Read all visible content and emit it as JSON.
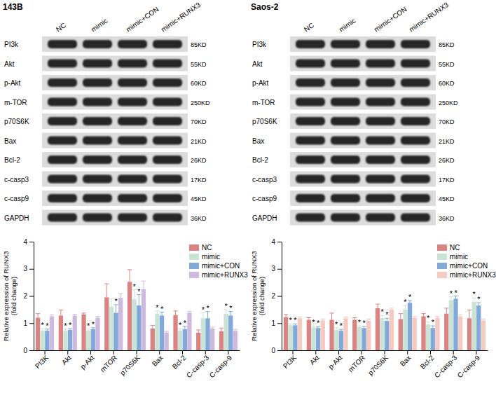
{
  "blots": [
    {
      "title": "143B",
      "lanes": [
        "NC",
        "mimic",
        "mimic+CON",
        "mimic+RUNX3"
      ],
      "proteins": [
        "PI3k",
        "Akt",
        "p-Akt",
        "m-TOR",
        "p70S6K",
        "Bax",
        "Bcl-2",
        "c-casp3",
        "c-casp9",
        "GAPDH"
      ],
      "sizes": [
        "85KD",
        "55KD",
        "60KD",
        "250KD",
        "70KD",
        "21KD",
        "26KD",
        "17KD",
        "45KD",
        "36KD"
      ]
    },
    {
      "title": "Saos-2",
      "lanes": [
        "NC",
        "mimic",
        "mimic+CON",
        "mimic+RUNX3"
      ],
      "proteins": [
        "PI3k",
        "Akt",
        "p-Akt",
        "m-TOR",
        "p70S6K",
        "Bax",
        "Bcl-2",
        "c-casp3",
        "c-casp9",
        "GAPDH"
      ],
      "sizes": [
        "85KD",
        "55KD",
        "60KD",
        "250KD",
        "70KD",
        "21KD",
        "26KD",
        "17KD",
        "45KD",
        "36KD"
      ]
    }
  ],
  "chart_data": [
    {
      "type": "bar",
      "ylabel": [
        "Relative expression of RUNX3",
        "(fold change)"
      ],
      "categories": [
        "PI3K",
        "Akt",
        "p-Akt",
        "mTOR",
        "p70S6K",
        "Bax",
        "Bcl-2",
        "C-casp-3",
        "C-casp-9"
      ],
      "ylim": [
        0,
        4
      ],
      "yticks": [
        0,
        1,
        2,
        3,
        4
      ],
      "legend": "upper right",
      "series": [
        {
          "name": "NC",
          "color": "#d98383",
          "values": [
            1.2,
            1.28,
            1.32,
            1.95,
            2.52,
            0.8,
            1.3,
            0.65,
            0.7
          ],
          "errors": [
            0.15,
            0.2,
            0.05,
            0.5,
            0.45,
            0.12,
            0.15,
            0.1,
            0.12
          ],
          "annotations": [
            null,
            null,
            null,
            null,
            null,
            null,
            null,
            null,
            null
          ]
        },
        {
          "name": "mimic",
          "color": "#c9e4d6",
          "values": [
            0.72,
            0.72,
            0.72,
            1.6,
            1.88,
            1.35,
            0.72,
            1.18,
            1.35
          ],
          "errors": [
            0.08,
            0.06,
            0.05,
            0.3,
            0.35,
            0.1,
            0.08,
            0.2,
            0.15
          ],
          "annotations": [
            "*",
            "*",
            "*",
            null,
            "*",
            "*",
            "*",
            "*",
            "*"
          ]
        },
        {
          "name": "mimic+CON",
          "color": "#82a9d8",
          "values": [
            0.72,
            0.75,
            0.78,
            1.38,
            1.65,
            1.28,
            0.78,
            1.18,
            1.28
          ],
          "errors": [
            0.06,
            0.05,
            0.05,
            0.3,
            0.4,
            0.12,
            0.1,
            0.25,
            0.15
          ],
          "annotations": [
            "*",
            "*",
            "*",
            "*",
            "*",
            "*",
            "*",
            "*",
            "*"
          ]
        },
        {
          "name": "mimic+RUNX3",
          "color": "#cfbadf",
          "values": [
            1.25,
            1.28,
            1.2,
            1.93,
            2.25,
            0.65,
            1.38,
            0.8,
            0.72
          ],
          "errors": [
            0.05,
            0.05,
            0.05,
            0.15,
            0.3,
            0.05,
            0.05,
            0.05,
            0.05
          ],
          "annotations": [
            null,
            null,
            null,
            null,
            null,
            null,
            null,
            null,
            null
          ]
        }
      ]
    },
    {
      "type": "bar",
      "ylabel": [
        "Relative expression of RUNX3",
        "(fold change)"
      ],
      "categories": [
        "PI3K",
        "Akt",
        "p-Akt",
        "mTOR",
        "p70S6K",
        "Bax",
        "Bcl-2",
        "C-casp-3",
        "C-casp-9"
      ],
      "ylim": [
        0,
        4
      ],
      "yticks": [
        0,
        1,
        2,
        3,
        4
      ],
      "legend": "upper right",
      "series": [
        {
          "name": "NC",
          "color": "#d98383",
          "values": [
            1.22,
            1.12,
            1.12,
            1.12,
            1.55,
            1.15,
            1.25,
            1.35,
            1.18
          ],
          "errors": [
            0.1,
            0.08,
            0.25,
            0.08,
            0.15,
            0.2,
            0.1,
            0.2,
            0.3
          ],
          "annotations": [
            null,
            null,
            null,
            null,
            null,
            null,
            null,
            null,
            null
          ]
        },
        {
          "name": "mimic",
          "color": "#c9e4d6",
          "values": [
            0.92,
            0.85,
            0.75,
            0.85,
            1.18,
            1.5,
            0.95,
            1.85,
            1.78
          ],
          "errors": [
            0.05,
            0.05,
            0.08,
            0.05,
            0.1,
            0.15,
            0.1,
            0.12,
            0.15
          ],
          "annotations": [
            "*",
            "*",
            "*",
            "*",
            "*",
            "*",
            "*",
            "*",
            "*"
          ]
        },
        {
          "name": "mimic+CON",
          "color": "#82a9d8",
          "values": [
            0.92,
            0.82,
            0.72,
            0.82,
            1.08,
            1.75,
            0.82,
            1.9,
            1.65
          ],
          "errors": [
            0.05,
            0.05,
            0.05,
            0.05,
            0.1,
            0.08,
            0.08,
            0.1,
            0.1
          ],
          "annotations": [
            "*",
            "*",
            "*",
            "*",
            "*",
            "*",
            "*",
            "*",
            "*"
          ]
        },
        {
          "name": "mimic+RUNX3",
          "color": "#f5cac1",
          "values": [
            1.18,
            1.1,
            1.18,
            1.1,
            1.5,
            1.2,
            1.2,
            1.25,
            1.1
          ],
          "errors": [
            0.05,
            0.05,
            0.05,
            0.05,
            0.05,
            0.05,
            0.05,
            0.05,
            0.05
          ],
          "annotations": [
            null,
            null,
            null,
            null,
            null,
            null,
            null,
            null,
            null
          ]
        }
      ]
    }
  ]
}
